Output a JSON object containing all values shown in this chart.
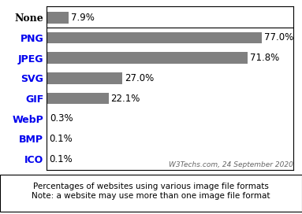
{
  "categories": [
    "None",
    "PNG",
    "JPEG",
    "SVG",
    "GIF",
    "WebP",
    "BMP",
    "ICO"
  ],
  "values": [
    7.9,
    77.0,
    71.8,
    27.0,
    22.1,
    0.3,
    0.1,
    0.1
  ],
  "labels": [
    "7.9%",
    "77.0%",
    "71.8%",
    "27.0%",
    "22.1%",
    "0.3%",
    "0.1%",
    "0.1%"
  ],
  "bar_color": "#808080",
  "none_label_color": "#000000",
  "category_label_color": "#0000ee",
  "xlim_max": 88,
  "bar_height": 0.58,
  "bg_color": "#ffffff",
  "border_color": "#000000",
  "watermark": "W3Techs.com, 24 September 2020",
  "footer_line1": "Percentages of websites using various image file formats",
  "footer_line2": "Note: a website may use more than one image file format",
  "label_fontsize": 9,
  "value_fontsize": 8.5,
  "watermark_fontsize": 6.5,
  "footer_fontsize": 7.5
}
